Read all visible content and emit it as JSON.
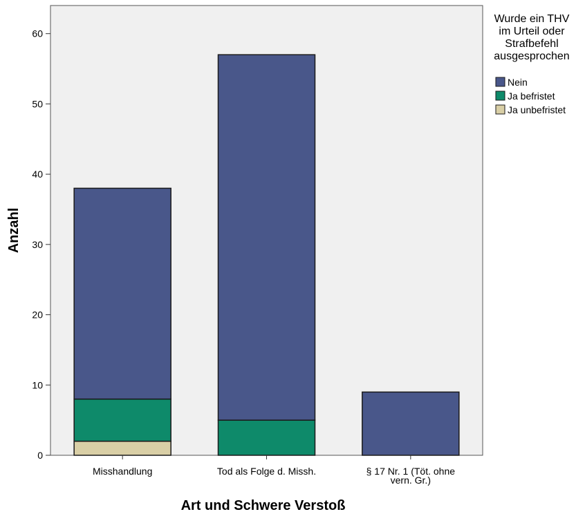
{
  "chart_data": {
    "type": "bar",
    "stacked": true,
    "categories": [
      [
        "Misshandlung"
      ],
      [
        "Tod als Folge d. Missh."
      ],
      [
        "§ 17 Nr. 1 (Töt. ohne",
        "vern. Gr.)"
      ]
    ],
    "series": [
      {
        "name": "Ja unbefristet",
        "color": "#D9CFA6",
        "values": [
          2,
          0,
          0
        ]
      },
      {
        "name": "Ja befristet",
        "color": "#0E8A6A",
        "values": [
          6,
          5,
          0
        ]
      },
      {
        "name": "Nein",
        "color": "#49578A",
        "values": [
          30,
          52,
          9
        ]
      }
    ],
    "xlabel": "Art und Schwere Verstoß",
    "ylabel": "Anzahl",
    "ylim": [
      0,
      64
    ],
    "yticks": [
      "0",
      "10",
      "20",
      "30",
      "40",
      "50",
      "60"
    ],
    "legend": {
      "title_lines": [
        "Wurde ein THV",
        "im Urteil oder",
        "Strafbefehl",
        "ausgesprochen"
      ],
      "items": [
        "Nein",
        "Ja befristet",
        "Ja unbefristet"
      ],
      "placement": "right"
    },
    "plot_background": "#F0F0F0",
    "grid": false
  }
}
